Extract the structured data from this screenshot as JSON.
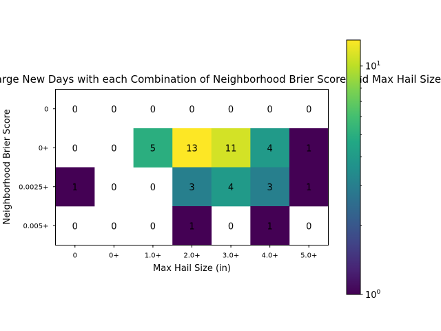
{
  "chart_data": {
    "type": "heatmap",
    "title": "Count of Large New Days with each Combination of Neighborhood Brier Score and Max Hail Size",
    "xlabel": "Max Hail Size (in)",
    "ylabel": "Neighborhood Brier Score",
    "x_categories": [
      "0",
      "0+",
      "1.0+",
      "2.0+",
      "3.0+",
      "4.0+",
      "5.0+"
    ],
    "y_categories": [
      "0",
      "0+",
      "0.0025+",
      "0.005+"
    ],
    "values": [
      [
        0,
        0,
        0,
        0,
        0,
        0,
        0
      ],
      [
        0,
        0,
        5,
        13,
        11,
        4,
        1
      ],
      [
        1,
        0,
        0,
        3,
        4,
        3,
        1
      ],
      [
        0,
        0,
        0,
        1,
        0,
        1,
        0
      ]
    ],
    "colorbar": {
      "scale": "log",
      "range": [
        1,
        13
      ],
      "colormap": "viridis",
      "tick_labels": [
        {
          "value": 1,
          "base": "10",
          "exp": "0"
        },
        {
          "value": 10,
          "base": "10",
          "exp": "1"
        }
      ]
    }
  }
}
